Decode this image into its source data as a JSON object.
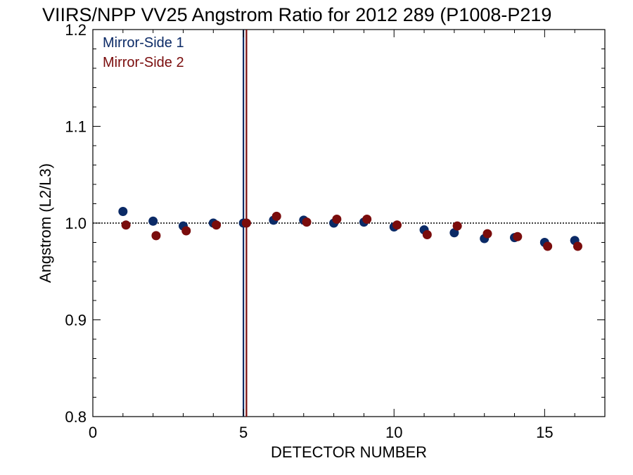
{
  "chart_data": {
    "type": "scatter",
    "title": "VIIRS/NPP VV25 Angstrom Ratio for 2012 289 (P1008-P219",
    "xlabel": "DETECTOR NUMBER",
    "ylabel": "Angstrom (L2/L3)",
    "xlim": [
      0,
      17
    ],
    "ylim": [
      0.8,
      1.2
    ],
    "xticks": [
      0,
      5,
      10,
      15
    ],
    "xtick_labels": [
      "0",
      "5",
      "10",
      "15"
    ],
    "yticks": [
      0.8,
      0.9,
      1.0,
      1.1,
      1.2
    ],
    "ytick_labels": [
      "0.8",
      "0.9",
      "1.0",
      "1.1",
      "1.2"
    ],
    "reference_line_y": 1.0,
    "vertical_lines": [
      {
        "x": 5.0,
        "color": "#0b2a66"
      },
      {
        "x": 5.1,
        "color": "#7a0c0c"
      }
    ],
    "legend_position": "top-left",
    "grid": false,
    "series": [
      {
        "name": "Mirror-Side 1",
        "color": "#0b2a66",
        "x": [
          1,
          2,
          3,
          4,
          5,
          6,
          7,
          8,
          9,
          10,
          11,
          12,
          13,
          14,
          15,
          16
        ],
        "y": [
          1.012,
          1.002,
          0.997,
          1.0,
          1.0,
          1.003,
          1.003,
          1.0,
          1.001,
          0.996,
          0.993,
          0.99,
          0.984,
          0.985,
          0.98,
          0.982
        ]
      },
      {
        "name": "Mirror-Side 2",
        "color": "#7a0c0c",
        "x": [
          1.1,
          2.1,
          3.1,
          4.1,
          5.1,
          6.1,
          7.1,
          8.1,
          9.1,
          10.1,
          11.1,
          12.1,
          13.1,
          14.1,
          15.1,
          16.1
        ],
        "y": [
          0.998,
          0.987,
          0.992,
          0.998,
          1.0,
          1.007,
          1.001,
          1.004,
          1.004,
          0.998,
          0.988,
          0.997,
          0.989,
          0.986,
          0.976,
          0.976
        ]
      }
    ]
  }
}
